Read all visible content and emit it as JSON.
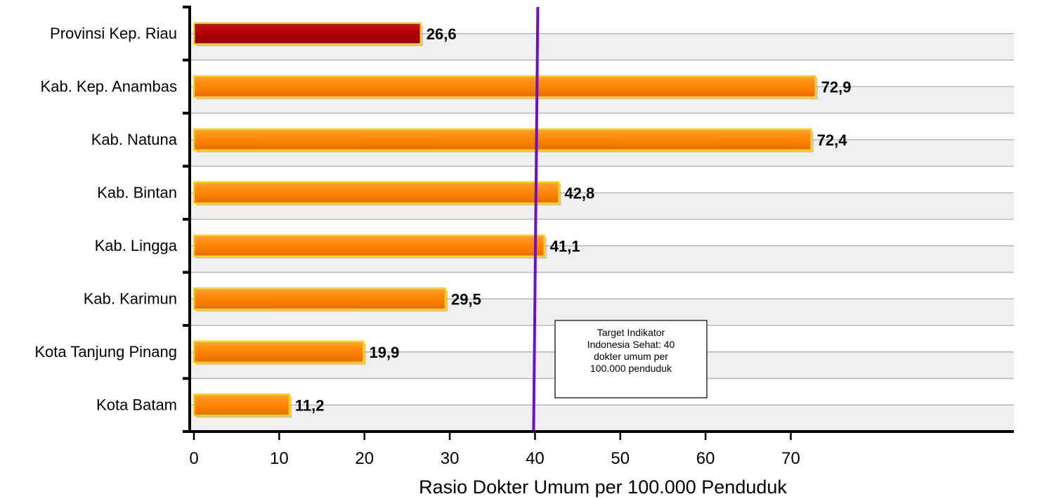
{
  "chart_data": {
    "type": "bar",
    "orientation": "horizontal",
    "categories": [
      "Provinsi Kep. Riau",
      "Kab. Kep. Anambas",
      "Kab. Natuna",
      "Kab. Bintan",
      "Kab. Lingga",
      "Kab. Karimun",
      "Kota Tanjung Pinang",
      "Kota Batam"
    ],
    "values": [
      26.6,
      72.9,
      72.4,
      42.8,
      41.1,
      29.5,
      19.9,
      11.2
    ],
    "value_labels": [
      "26,6",
      "72,9",
      "72,4",
      "42,8",
      "41,1",
      "29,5",
      "19,9",
      "11,2"
    ],
    "highlight_index": 0,
    "colors": {
      "bar": "#ff8400",
      "bar_highlight": "#b30000",
      "bar_edge": "#ffd21a",
      "target_line": "#6a12c8",
      "band": "#efefef",
      "gridline": "#b7b7b7"
    },
    "xlabel": "Rasio Dokter Umum per 100.000 Penduduk",
    "xlim": [
      0,
      75
    ],
    "xticks": [
      0,
      10,
      20,
      30,
      40,
      50,
      60,
      70
    ],
    "grid": true,
    "reference_line": {
      "value": 40,
      "label_lines": [
        "Target Indikator",
        "Indonesia  Sehat: 40",
        "dokter umum per",
        "100.000 penduduk"
      ]
    }
  }
}
